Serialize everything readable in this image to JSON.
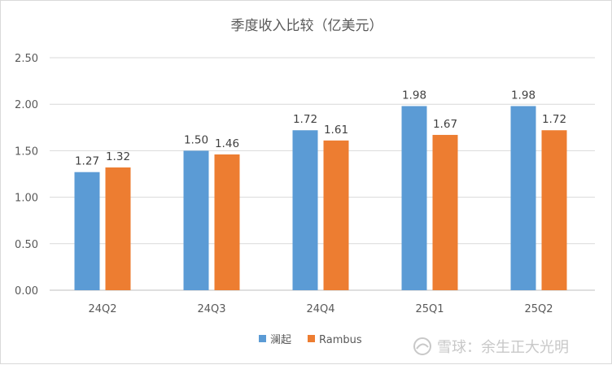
{
  "chart_data": {
    "type": "bar",
    "title": "季度收入比较（亿美元）",
    "categories": [
      "24Q2",
      "24Q3",
      "24Q4",
      "25Q1",
      "25Q2"
    ],
    "series": [
      {
        "name": "澜起",
        "color": "#5b9bd5",
        "values": [
          1.27,
          1.5,
          1.72,
          1.98,
          1.98
        ],
        "labels": [
          "1.27",
          "1.50",
          "1.72",
          "1.98",
          "1.98"
        ]
      },
      {
        "name": "Rambus",
        "color": "#ed7d31",
        "values": [
          1.32,
          1.46,
          1.61,
          1.67,
          1.72
        ],
        "labels": [
          "1.32",
          "1.46",
          "1.61",
          "1.67",
          "1.72"
        ]
      }
    ],
    "ylim": [
      0,
      2.5
    ],
    "yticks": [
      "0.00",
      "0.50",
      "1.00",
      "1.50",
      "2.00",
      "2.50"
    ],
    "grid": true,
    "legend_position": "bottom"
  },
  "watermark": {
    "text": "雪球：余生正大光明",
    "icon": "snowball-logo-icon"
  }
}
